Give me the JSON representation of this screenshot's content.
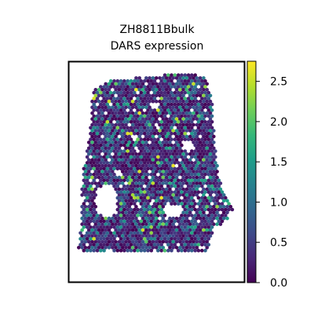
{
  "chart_data": {
    "type": "heatmap",
    "title_lines": [
      "ZH8811Bbulk",
      "DARS expression"
    ],
    "xlabel": "",
    "ylabel": "",
    "colorbar": {
      "colormap": "viridis",
      "range": [
        0.0,
        2.75
      ],
      "ticks": [
        "0.0",
        "0.5",
        "1.0",
        "1.5",
        "2.0",
        "2.5"
      ],
      "tick_values": [
        0.0,
        0.5,
        1.0,
        1.5,
        2.0,
        2.5
      ]
    },
    "grid": false,
    "axes_ticks_visible": false,
    "spot_value_distribution": {
      "mostly": "0.0–0.5",
      "max_observed": 2.7
    }
  },
  "colors": {
    "frame": "#000000",
    "background": "#ffffff",
    "viridis": [
      "#440154",
      "#482878",
      "#3e4989",
      "#31688e",
      "#26828e",
      "#1f9e89",
      "#35b779",
      "#6ece58",
      "#b5de2b",
      "#fde725"
    ]
  }
}
